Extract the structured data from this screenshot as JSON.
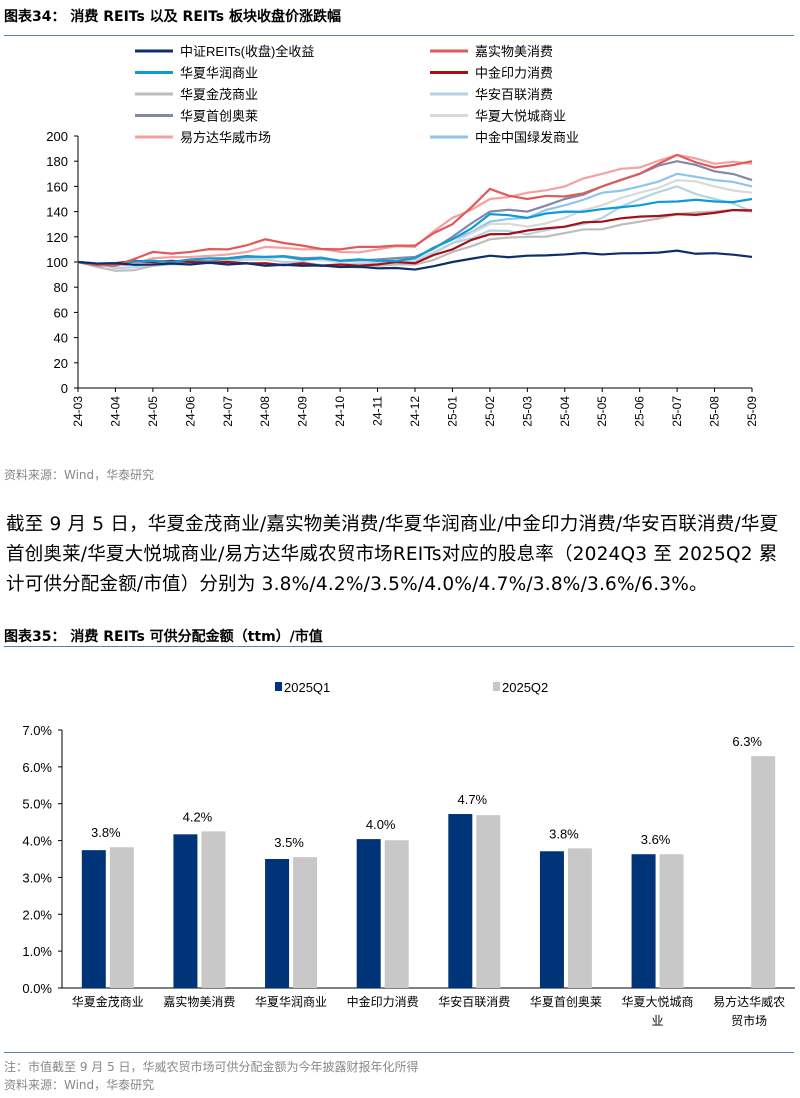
{
  "figure34": {
    "title": "图表34： 消费 REITs 以及 REITs 板块收盘价涨跌幅",
    "source": "资料来源：Wind，华泰研究"
  },
  "paragraph": "截至 9 月 5 日，华夏金茂商业/嘉实物美消费/华夏华润商业/中金印力消费/华安百联消费/华夏首创奥莱/华夏大悦城商业/易方达华威农贸市场REITs对应的股息率（2024Q3 至 2025Q2 累计可供分配金额/市值）分别为 3.8%/4.2%/3.5%/4.0%/4.7%/3.8%/3.6%/6.3%。",
  "figure35": {
    "title": "图表35： 消费 REITs 可供分配金额（ttm）/市值",
    "note": "注：市值截至 9 月 5 日，华威农贸市场可供分配金额为今年披露财报年化所得",
    "source": "资料来源：Wind，华泰研究"
  },
  "chart_data": [
    {
      "type": "line",
      "ylim": [
        0,
        200
      ],
      "yticks": [
        0,
        20,
        40,
        60,
        80,
        100,
        120,
        140,
        160,
        180,
        200
      ],
      "x": [
        "24-03",
        "24-04",
        "24-05",
        "24-06",
        "24-07",
        "24-08",
        "24-09",
        "24-10",
        "24-11",
        "24-12",
        "25-01",
        "25-02",
        "25-03",
        "25-04",
        "25-05",
        "25-06",
        "25-07",
        "25-08",
        "25-09"
      ],
      "legend": "top",
      "grid": false,
      "series": [
        {
          "name": "中证REITs(收盘)全收益",
          "color": "#0b2f6b",
          "values": [
            100,
            99,
            98,
            98,
            98,
            97,
            97,
            96,
            95,
            94,
            100,
            105,
            105,
            106,
            106,
            107,
            109,
            107,
            104
          ]
        },
        {
          "name": "嘉实物美消费",
          "color": "#e05a5a",
          "values": [
            100,
            97,
            108,
            108,
            110,
            118,
            113,
            110,
            112,
            113,
            130,
            158,
            150,
            152,
            160,
            170,
            185,
            175,
            180
          ]
        },
        {
          "name": "华夏华润商业",
          "color": "#0d9bd6",
          "values": [
            100,
            98,
            101,
            102,
            103,
            104,
            102,
            101,
            101,
            103,
            118,
            138,
            135,
            140,
            142,
            145,
            148,
            148,
            150
          ]
        },
        {
          "name": "中金印力消费",
          "color": "#a50f15",
          "values": [
            100,
            99,
            100,
            100,
            100,
            99,
            99,
            98,
            98,
            99,
            110,
            122,
            125,
            128,
            132,
            136,
            138,
            139,
            141
          ]
        },
        {
          "name": "华夏金茂商业",
          "color": "#bdbdbd",
          "values": [
            100,
            93,
            97,
            98,
            98,
            98,
            98,
            97,
            97,
            98,
            108,
            118,
            120,
            123,
            126,
            132,
            138,
            140,
            140
          ]
        },
        {
          "name": "华安百联消费",
          "color": "#b3d4e3",
          "values": [
            100,
            95,
            98,
            100,
            101,
            102,
            100,
            98,
            99,
            100,
            115,
            125,
            122,
            128,
            135,
            150,
            160,
            150,
            140
          ]
        },
        {
          "name": "华夏首创奥莱",
          "color": "#8188a8",
          "values": [
            100,
            98,
            100,
            101,
            102,
            104,
            103,
            101,
            102,
            104,
            120,
            140,
            140,
            150,
            160,
            170,
            180,
            172,
            165
          ]
        },
        {
          "name": "华夏大悦城商业",
          "color": "#d9d9d9",
          "values": [
            100,
            97,
            100,
            101,
            102,
            103,
            102,
            100,
            100,
            102,
            115,
            130,
            128,
            135,
            145,
            155,
            165,
            160,
            155
          ]
        },
        {
          "name": "易方达华威市场",
          "color": "#f7a0a0",
          "values": [
            100,
            97,
            103,
            104,
            106,
            112,
            110,
            108,
            110,
            112,
            135,
            150,
            155,
            160,
            170,
            175,
            185,
            178,
            178
          ]
        },
        {
          "name": "中金中国绿发商业",
          "color": "#8ec5ee",
          "values": [
            100,
            97,
            100,
            101,
            102,
            103,
            102,
            100,
            101,
            103,
            118,
            132,
            135,
            145,
            155,
            160,
            170,
            165,
            160
          ]
        }
      ]
    },
    {
      "type": "bar",
      "ylim": [
        0,
        7
      ],
      "yticks": [
        "0.0%",
        "1.0%",
        "2.0%",
        "3.0%",
        "4.0%",
        "5.0%",
        "6.0%",
        "7.0%"
      ],
      "legend": "top",
      "categories": [
        [
          "华夏金茂商业"
        ],
        [
          "嘉实物美消费"
        ],
        [
          "华夏华润商业"
        ],
        [
          "中金印力消费"
        ],
        [
          "华安百联消费"
        ],
        [
          "华夏首创奥莱"
        ],
        [
          "华夏大悦城商",
          "业"
        ],
        [
          "易方达华威农",
          "贸市场"
        ]
      ],
      "series": [
        {
          "name": "2025Q1",
          "color": "#003478",
          "values": [
            3.74,
            4.17,
            3.5,
            4.04,
            4.72,
            3.71,
            3.63,
            null
          ]
        },
        {
          "name": "2025Q2",
          "color": "#c8c8c8",
          "values": [
            3.82,
            4.25,
            3.55,
            4.01,
            4.69,
            3.79,
            3.63,
            6.29
          ],
          "labels": [
            "3.8%",
            "4.2%",
            "3.5%",
            "4.0%",
            "4.7%",
            "3.8%",
            "3.6%",
            "6.3%"
          ]
        }
      ]
    }
  ]
}
